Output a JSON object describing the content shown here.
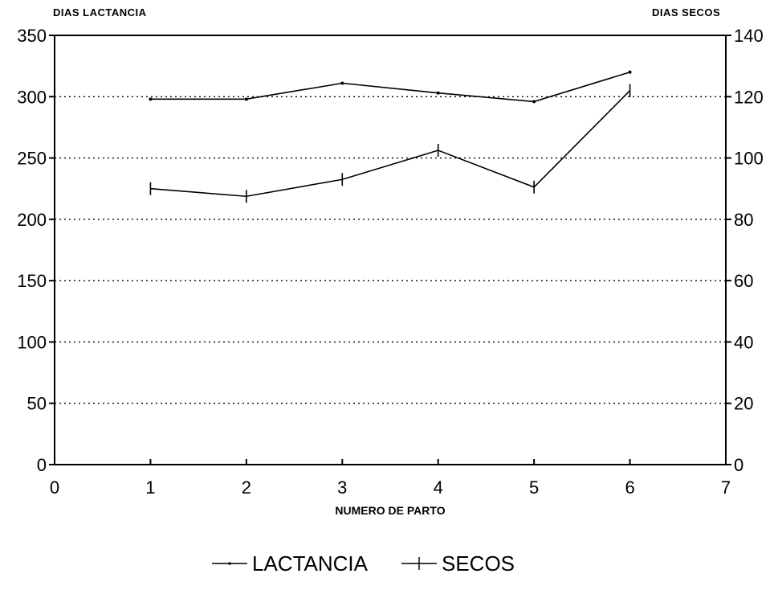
{
  "chart_data": {
    "type": "line",
    "title": "",
    "xlabel": "NUMERO DE PARTO",
    "ylabel_left": "DIAS LACTANCIA",
    "ylabel_right": "DIAS SECOS",
    "x_ticks": [
      "0",
      "1",
      "2",
      "3",
      "4",
      "5",
      "6",
      "7"
    ],
    "xlim": [
      0,
      7
    ],
    "ylim_left": [
      0,
      350
    ],
    "ylim_right": [
      0,
      140
    ],
    "y_ticks_left": [
      0,
      50,
      100,
      150,
      200,
      250,
      300,
      350
    ],
    "y_ticks_right": [
      0,
      20,
      40,
      60,
      80,
      100,
      120,
      140
    ],
    "grid": "horizontal dotted",
    "legend_position": "bottom",
    "series": [
      {
        "name": "LACTANCIA",
        "axis": "left",
        "marker": "dot",
        "x": [
          1,
          2,
          3,
          4,
          5,
          6
        ],
        "y": [
          298,
          298,
          311,
          303,
          296,
          320
        ]
      },
      {
        "name": "SECOS",
        "axis": "right",
        "marker": "plus",
        "x": [
          1,
          2,
          3,
          4,
          5,
          6
        ],
        "y": [
          90,
          87.5,
          93,
          102.5,
          90.5,
          122
        ]
      }
    ]
  }
}
